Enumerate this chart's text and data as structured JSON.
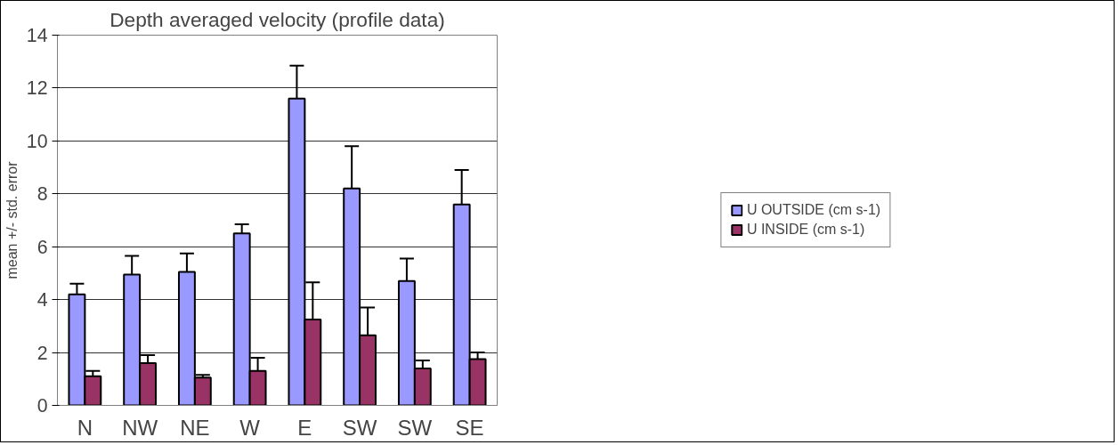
{
  "chart_data": {
    "type": "bar",
    "title": "Depth averaged velocity (profile data)",
    "ylabel": "mean +/- std. error",
    "categories": [
      "N",
      "NW",
      "NE",
      "W",
      "E",
      "SW",
      "SW",
      "SE"
    ],
    "series": [
      {
        "name": "U OUTSIDE (cm s-1)",
        "color": "#9999ff",
        "values": [
          4.2,
          4.95,
          5.05,
          6.5,
          11.6,
          8.2,
          4.7,
          7.6
        ],
        "errors": [
          0.4,
          0.7,
          0.7,
          0.35,
          1.25,
          1.6,
          0.85,
          1.3
        ]
      },
      {
        "name": "U INSIDE (cm s-1)",
        "color": "#993366",
        "values": [
          1.1,
          1.6,
          1.05,
          1.3,
          3.25,
          2.65,
          1.4,
          1.75
        ],
        "errors": [
          0.2,
          0.3,
          0.1,
          0.5,
          1.4,
          1.05,
          0.3,
          0.25
        ]
      }
    ],
    "ylim": [
      0,
      14
    ],
    "yticks": [
      0,
      2,
      4,
      6,
      8,
      10,
      12,
      14
    ],
    "grid": "y",
    "legend": "right"
  }
}
